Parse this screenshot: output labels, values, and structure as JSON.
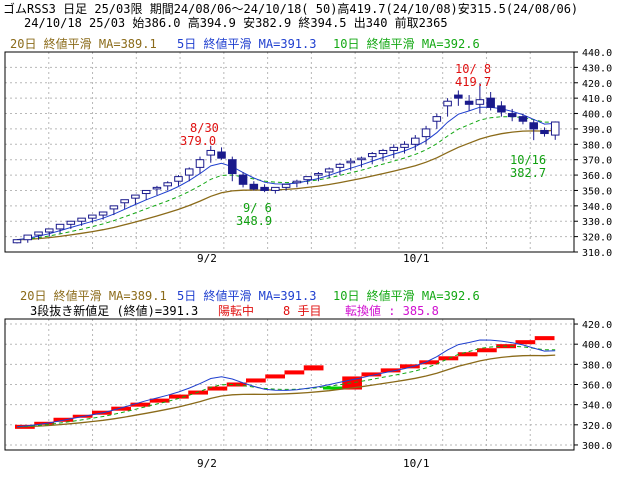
{
  "header": {
    "line1": "ゴムRSS3 日足 25/03限 期間24/08/06～24/10/18( 50)高419.7(24/10/08)安315.5(24/08/06)",
    "line2": "24/10/18 25/03 始386.0 高394.9 安382.9 終394.5 出340 前取2365"
  },
  "colors": {
    "ma20": "#8b6b1a",
    "ma5": "#1f3fcf",
    "ma10": "#13a813",
    "candle": "#1a1a8c",
    "up": "#ff0000",
    "down": "#00cc00",
    "annot_red": "#e01010",
    "annot_green": "#10a010",
    "grid": "#b8b8b8"
  },
  "top_legend": {
    "ma20": "20日 終値平滑 MA=389.1",
    "ma5": "5日 終値平滑 MA=391.3",
    "ma10": "10日 終値平滑 MA=392.6"
  },
  "bottom_legend": {
    "ma20": "20日 終値平滑 MA=389.1",
    "ma5": "5日 終値平滑 MA=391.3",
    "ma10": "10日 終値平滑 MA=392.6",
    "kagi_label": "3段抜き新値足 (終値)=391.3",
    "kagi_state": "陽転中",
    "kagi_count": "8 手目",
    "kagi_turn": "転換値 : 385.8"
  },
  "x_labels": {
    "sep2": "9/2",
    "oct1": "10/1"
  },
  "annotations": {
    "a1_date": "8/30",
    "a1_val": "379.0",
    "a2_date": "9/ 6",
    "a2_val": "348.9",
    "a3_date": "10/ 8",
    "a3_val": "419.7",
    "a4_date": "10/16",
    "a4_val": "382.7"
  },
  "chart_data": [
    {
      "type": "candlestick",
      "dates": [
        "08/06",
        "08/07",
        "08/08",
        "08/09",
        "08/12",
        "08/13",
        "08/14",
        "08/15",
        "08/16",
        "08/19",
        "08/20",
        "08/21",
        "08/22",
        "08/23",
        "08/26",
        "08/27",
        "08/28",
        "08/29",
        "08/30",
        "09/02",
        "09/03",
        "09/04",
        "09/05",
        "09/06",
        "09/09",
        "09/10",
        "09/11",
        "09/12",
        "09/13",
        "09/17",
        "09/18",
        "09/19",
        "09/20",
        "09/24",
        "09/25",
        "09/26",
        "09/27",
        "09/30",
        "10/01",
        "10/02",
        "10/03",
        "10/04",
        "10/07",
        "10/08",
        "10/09",
        "10/10",
        "10/11",
        "10/15",
        "10/16",
        "10/17",
        "10/18"
      ],
      "open": [
        316,
        318,
        321,
        323,
        325,
        328,
        330,
        332,
        334,
        338,
        342,
        345,
        348,
        351,
        353,
        356,
        360,
        365,
        373,
        375,
        370,
        360,
        354,
        352,
        350,
        352,
        355,
        357,
        360,
        362,
        365,
        368,
        370,
        372,
        374,
        376,
        378,
        380,
        385,
        395,
        405,
        412,
        408,
        406,
        410,
        405,
        400,
        398,
        394,
        389,
        386.0
      ],
      "high": [
        318,
        320,
        323,
        325,
        328,
        330,
        332,
        334,
        336,
        340,
        344,
        347,
        350,
        353,
        356,
        360,
        365,
        372,
        379,
        378,
        372,
        362,
        356,
        354,
        352,
        354,
        357,
        359,
        362,
        365,
        368,
        371,
        372,
        375,
        377,
        380,
        382,
        386,
        392,
        400,
        410,
        415,
        412,
        419.7,
        414,
        408,
        403,
        400,
        396,
        391,
        394.9
      ],
      "low": [
        315.5,
        316,
        318,
        320,
        322,
        325,
        327,
        329,
        331,
        334,
        338,
        341,
        344,
        347,
        350,
        353,
        356,
        361,
        368,
        370,
        356,
        352,
        350,
        348.9,
        348,
        350,
        352,
        354,
        356,
        358,
        360,
        363,
        365,
        367,
        369,
        371,
        374,
        376,
        380,
        390,
        398,
        405,
        402,
        400,
        402,
        398,
        395,
        393,
        382.7,
        385,
        382.9
      ],
      "close": [
        318,
        321,
        323,
        325,
        328,
        330,
        332,
        334,
        336,
        340,
        344,
        347,
        350,
        352,
        355,
        359,
        364,
        370,
        376,
        371,
        361,
        354,
        351,
        350,
        352,
        354,
        356,
        359,
        361,
        364,
        367,
        369,
        371,
        374,
        376,
        378,
        380,
        384,
        390,
        398,
        408,
        410,
        406,
        409,
        404,
        401,
        398,
        395,
        390,
        387,
        394.5
      ]
    },
    {
      "type": "line",
      "series": [
        {
          "name": "20日 終値平滑",
          "last": 389.1
        },
        {
          "name": "5日 終値平滑",
          "last": 391.3
        },
        {
          "name": "10日 終値平滑",
          "last": 392.6
        }
      ],
      "ylim": [
        310,
        440
      ],
      "yticks": [
        310,
        320,
        330,
        340,
        350,
        360,
        370,
        380,
        390,
        400,
        410,
        420,
        430,
        440
      ]
    },
    {
      "type": "bar",
      "title": "3段抜き新値足 (終値)=391.3",
      "ylim": [
        295,
        425
      ],
      "yticks": [
        300,
        320,
        340,
        360,
        380,
        400,
        420
      ],
      "blocks": [
        {
          "dir": "up",
          "from": 316,
          "to": 320
        },
        {
          "dir": "up",
          "from": 320,
          "to": 323
        },
        {
          "dir": "up",
          "from": 323,
          "to": 327
        },
        {
          "dir": "up",
          "from": 327,
          "to": 330
        },
        {
          "dir": "up",
          "from": 330,
          "to": 334
        },
        {
          "dir": "up",
          "from": 334,
          "to": 338
        },
        {
          "dir": "up",
          "from": 338,
          "to": 342
        },
        {
          "dir": "up",
          "from": 342,
          "to": 346
        },
        {
          "dir": "up",
          "from": 346,
          "to": 350
        },
        {
          "dir": "up",
          "from": 350,
          "to": 354
        },
        {
          "dir": "up",
          "from": 354,
          "to": 358
        },
        {
          "dir": "up",
          "from": 358,
          "to": 362
        },
        {
          "dir": "up",
          "from": 362,
          "to": 366
        },
        {
          "dir": "up",
          "from": 366,
          "to": 370
        },
        {
          "dir": "up",
          "from": 370,
          "to": 374
        },
        {
          "dir": "up",
          "from": 374,
          "to": 379
        },
        {
          "dir": "down",
          "from": 358,
          "to": 355
        },
        {
          "dir": "up",
          "from": 355,
          "to": 368
        },
        {
          "dir": "up",
          "from": 368,
          "to": 372
        },
        {
          "dir": "up",
          "from": 372,
          "to": 376
        },
        {
          "dir": "up",
          "from": 376,
          "to": 380
        },
        {
          "dir": "up",
          "from": 380,
          "to": 384
        },
        {
          "dir": "up",
          "from": 384,
          "to": 388
        },
        {
          "dir": "up",
          "from": 388,
          "to": 392
        },
        {
          "dir": "up",
          "from": 392,
          "to": 396
        },
        {
          "dir": "up",
          "from": 396,
          "to": 400
        },
        {
          "dir": "up",
          "from": 400,
          "to": 404
        },
        {
          "dir": "up",
          "from": 404,
          "to": 408
        }
      ]
    }
  ]
}
